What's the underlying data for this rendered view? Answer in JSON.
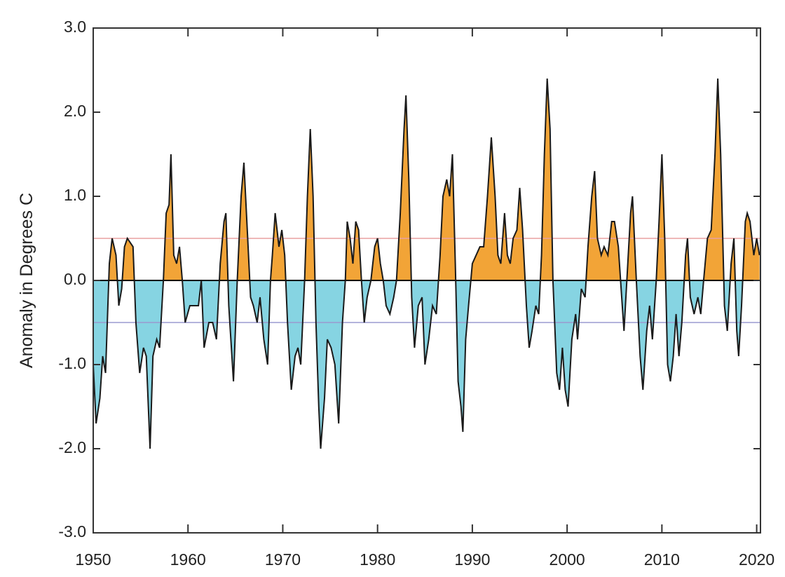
{
  "chart_data": {
    "type": "area",
    "y_label": "Anomaly in Degrees C",
    "xlim": [
      1950,
      2020.4
    ],
    "ylim": [
      -3,
      3
    ],
    "xticks": [
      1950,
      1960,
      1970,
      1980,
      1990,
      2000,
      2010,
      2020
    ],
    "yticks": [
      {
        "value": -3,
        "label": "-3.0"
      },
      {
        "value": -2,
        "label": "-2.0"
      },
      {
        "value": -1,
        "label": "-1.0"
      },
      {
        "value": 0,
        "label": "0.0"
      },
      {
        "value": 1,
        "label": "1.0"
      },
      {
        "value": 2,
        "label": "2.0"
      },
      {
        "value": 3,
        "label": "3.0"
      }
    ],
    "positive_color": "#f2a437",
    "negative_color": "#86d4e2",
    "line_color": "#1a1a1a",
    "reference_lines": [
      {
        "value": 0.5,
        "color": "#e8a0a0"
      },
      {
        "value": -0.5,
        "color": "#9a9ad0"
      }
    ],
    "x": [
      1950.0,
      1950.3,
      1950.7,
      1951.0,
      1951.3,
      1951.7,
      1952.0,
      1952.4,
      1952.7,
      1953.0,
      1953.3,
      1953.6,
      1954.2,
      1954.5,
      1954.9,
      1955.3,
      1955.6,
      1956.0,
      1956.3,
      1956.7,
      1957.0,
      1957.4,
      1957.7,
      1958.0,
      1958.2,
      1958.5,
      1958.8,
      1959.1,
      1959.4,
      1959.7,
      1960.2,
      1960.7,
      1961.1,
      1961.4,
      1961.7,
      1962.2,
      1962.6,
      1963.0,
      1963.4,
      1963.8,
      1964.0,
      1964.3,
      1964.8,
      1965.2,
      1965.6,
      1965.9,
      1966.3,
      1966.6,
      1966.9,
      1967.3,
      1967.6,
      1968.0,
      1968.4,
      1968.7,
      1968.9,
      1969.2,
      1969.6,
      1969.9,
      1970.2,
      1970.5,
      1970.9,
      1971.3,
      1971.6,
      1971.9,
      1972.3,
      1972.6,
      1972.9,
      1973.2,
      1973.5,
      1973.8,
      1974.0,
      1974.4,
      1974.7,
      1975.1,
      1975.5,
      1975.9,
      1976.3,
      1976.6,
      1976.8,
      1977.1,
      1977.4,
      1977.7,
      1978.0,
      1978.3,
      1978.6,
      1978.9,
      1979.3,
      1979.7,
      1980.0,
      1980.3,
      1980.6,
      1980.9,
      1981.3,
      1981.7,
      1982.0,
      1982.4,
      1982.8,
      1983.0,
      1983.3,
      1983.6,
      1983.9,
      1984.3,
      1984.7,
      1985.0,
      1985.4,
      1985.8,
      1986.2,
      1986.6,
      1986.9,
      1987.3,
      1987.6,
      1987.9,
      1988.2,
      1988.5,
      1988.8,
      1989.0,
      1989.3,
      1989.6,
      1990.0,
      1990.4,
      1990.8,
      1991.2,
      1991.6,
      1992.0,
      1992.4,
      1992.7,
      1993.0,
      1993.4,
      1993.7,
      1994.0,
      1994.3,
      1994.7,
      1995.0,
      1995.3,
      1995.7,
      1996.0,
      1996.3,
      1996.7,
      1997.0,
      1997.3,
      1997.6,
      1997.9,
      1998.2,
      1998.5,
      1998.9,
      1999.2,
      1999.5,
      1999.8,
      2000.1,
      2000.5,
      2000.9,
      2001.1,
      2001.5,
      2001.9,
      2002.2,
      2002.6,
      2002.9,
      2003.2,
      2003.6,
      2003.9,
      2004.3,
      2004.7,
      2005.0,
      2005.4,
      2005.7,
      2006.0,
      2006.4,
      2006.7,
      2006.9,
      2007.3,
      2007.7,
      2008.0,
      2008.4,
      2008.7,
      2009.0,
      2009.4,
      2009.7,
      2010.0,
      2010.3,
      2010.6,
      2010.9,
      2011.2,
      2011.5,
      2011.8,
      2012.1,
      2012.5,
      2012.7,
      2013.0,
      2013.4,
      2013.8,
      2014.1,
      2014.4,
      2014.8,
      2015.2,
      2015.6,
      2015.9,
      2016.2,
      2016.6,
      2016.9,
      2017.3,
      2017.6,
      2017.9,
      2018.1,
      2018.4,
      2018.8,
      2019.0,
      2019.3,
      2019.7,
      2020.0,
      2020.3
    ],
    "values": [
      -1.0,
      -1.7,
      -1.4,
      -0.9,
      -1.1,
      0.2,
      0.5,
      0.3,
      -0.3,
      -0.1,
      0.4,
      0.5,
      0.4,
      -0.5,
      -1.1,
      -0.8,
      -0.9,
      -2.0,
      -0.9,
      -0.7,
      -0.8,
      0.0,
      0.8,
      0.9,
      1.5,
      0.3,
      0.2,
      0.4,
      0.0,
      -0.5,
      -0.3,
      -0.3,
      -0.3,
      0.0,
      -0.8,
      -0.5,
      -0.5,
      -0.7,
      0.2,
      0.7,
      0.8,
      -0.3,
      -1.2,
      0.0,
      1.0,
      1.4,
      0.5,
      -0.2,
      -0.3,
      -0.5,
      -0.2,
      -0.7,
      -1.0,
      0.0,
      0.3,
      0.8,
      0.4,
      0.6,
      0.3,
      -0.5,
      -1.3,
      -0.9,
      -0.8,
      -1.0,
      0.0,
      1.0,
      1.8,
      1.0,
      -0.5,
      -1.5,
      -2.0,
      -1.4,
      -0.7,
      -0.8,
      -1.0,
      -1.7,
      -0.5,
      0.0,
      0.7,
      0.5,
      0.2,
      0.7,
      0.6,
      0.0,
      -0.5,
      -0.2,
      0.0,
      0.4,
      0.5,
      0.2,
      0.0,
      -0.3,
      -0.4,
      -0.2,
      0.0,
      0.8,
      1.8,
      2.2,
      1.2,
      -0.2,
      -0.8,
      -0.3,
      -0.2,
      -1.0,
      -0.7,
      -0.3,
      -0.4,
      0.3,
      1.0,
      1.2,
      1.0,
      1.5,
      0.2,
      -1.2,
      -1.5,
      -1.8,
      -0.7,
      -0.3,
      0.2,
      0.3,
      0.4,
      0.4,
      1.0,
      1.7,
      1.0,
      0.3,
      0.2,
      0.8,
      0.3,
      0.2,
      0.5,
      0.6,
      1.1,
      0.6,
      -0.3,
      -0.8,
      -0.6,
      -0.3,
      -0.4,
      0.3,
      1.5,
      2.4,
      1.8,
      0.0,
      -1.1,
      -1.3,
      -0.8,
      -1.3,
      -1.5,
      -0.7,
      -0.4,
      -0.7,
      -0.1,
      -0.2,
      0.4,
      1.0,
      1.3,
      0.5,
      0.3,
      0.4,
      0.3,
      0.7,
      0.7,
      0.4,
      -0.1,
      -0.6,
      0.2,
      0.8,
      1.0,
      0.0,
      -0.9,
      -1.3,
      -0.6,
      -0.3,
      -0.7,
      0.0,
      0.7,
      1.5,
      0.5,
      -1.0,
      -1.2,
      -0.9,
      -0.4,
      -0.9,
      -0.5,
      0.3,
      0.5,
      -0.2,
      -0.4,
      -0.2,
      -0.4,
      0.0,
      0.5,
      0.6,
      1.5,
      2.4,
      1.5,
      -0.3,
      -0.6,
      0.2,
      0.5,
      -0.6,
      -0.9,
      -0.3,
      0.7,
      0.8,
      0.7,
      0.3,
      0.5,
      0.3
    ]
  }
}
